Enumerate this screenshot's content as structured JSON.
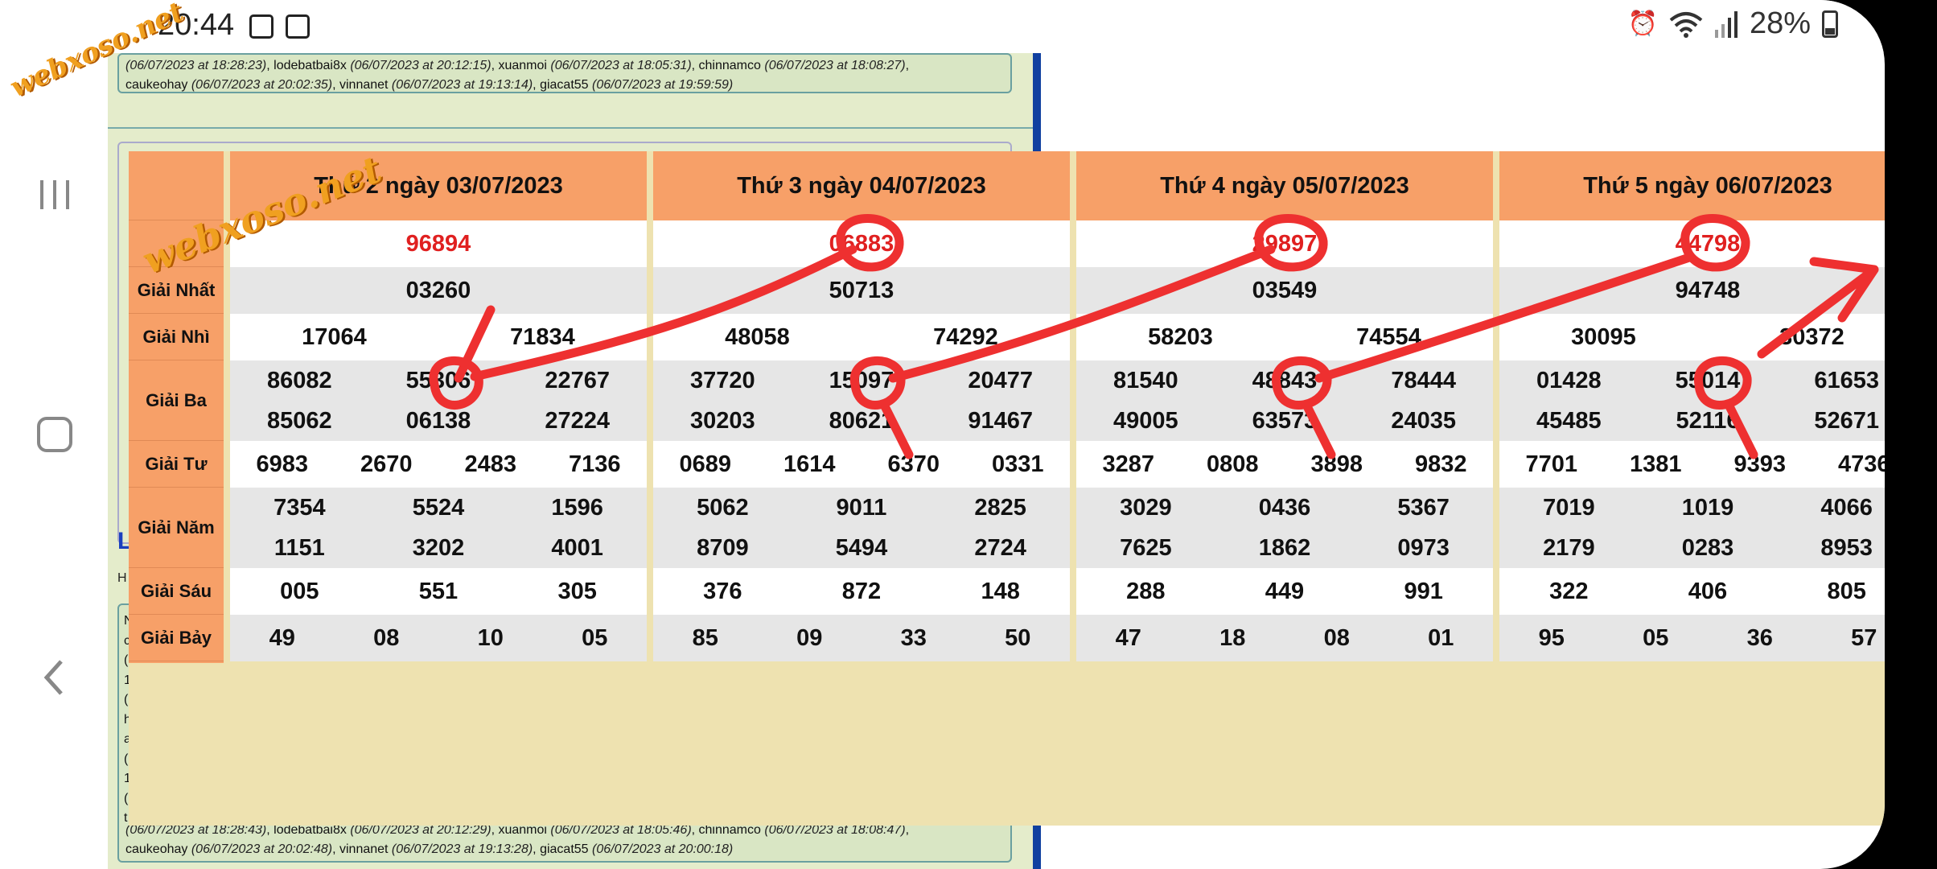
{
  "status_bar": {
    "time": "20:44",
    "battery": "28%",
    "icons": [
      "calendar-icon",
      "gallery-icon",
      "alarm-icon",
      "wifi-icon",
      "signal-icon",
      "battery-icon"
    ]
  },
  "watermark": "webxoso.net",
  "webpage": {
    "top_comments": {
      "line1_parts": [
        "(06/07/2023 at 18:28:23)",
        ", lodebatbai8x ",
        "(06/07/2023 at 20:12:15)",
        ", xuanmoi ",
        "(06/07/2023 at 18:05:31)",
        ", chinnamco ",
        "(06/07/2023 at 18:08:27)",
        ","
      ],
      "line2_parts": [
        "caukeohay ",
        "(06/07/2023 at 20:02:35)",
        ", vinnanet ",
        "(06/07/2023 at 19:13:14)",
        ", giacat55 ",
        "(06/07/2023 at 19:59:59)"
      ]
    },
    "side_link": "L",
    "side_fragment_h": "H",
    "side_letters": [
      "N",
      "c",
      "(",
      "1",
      "(",
      "h",
      "a",
      "(",
      "1",
      "(",
      "t"
    ],
    "bottom_comments": {
      "line1_parts": [
        "(06/07/2023 at 18:28:43)",
        ", lodebatbai8x ",
        "(06/07/2023 at 20:12:29)",
        ", xuanmoi ",
        "(06/07/2023 at 18:05:46)",
        ", chinnamco ",
        "(06/07/2023 at 18:08:47)",
        ","
      ],
      "line2_parts": [
        "caukeohay ",
        "(06/07/2023 at 20:02:48)",
        ", vinnanet ",
        "(06/07/2023 at 19:13:28)",
        ", giacat55 ",
        "(06/07/2023 at 20:00:18)"
      ]
    }
  },
  "results": {
    "row_labels": [
      "",
      "Giải Nhất",
      "Giải Nhì",
      "Giải Ba",
      "Giải Tư",
      "Giải Năm",
      "Giải Sáu",
      "Giải Bảy"
    ],
    "days": [
      {
        "header": "Thứ 2 ngày 03/07/2023",
        "special": "96894",
        "nhat": [
          "03260"
        ],
        "nhi": [
          "17064",
          "71834"
        ],
        "ba": [
          "86082",
          "55306",
          "22767",
          "85062",
          "06138",
          "27224"
        ],
        "tu": [
          "6983",
          "2670",
          "2483",
          "7136"
        ],
        "nam": [
          "7354",
          "5524",
          "1596",
          "1151",
          "3202",
          "4001"
        ],
        "sau": [
          "005",
          "551",
          "305"
        ],
        "bay": [
          "49",
          "08",
          "10",
          "05"
        ]
      },
      {
        "header": "Thứ 3 ngày 04/07/2023",
        "special": "06883",
        "nhat": [
          "50713"
        ],
        "nhi": [
          "48058",
          "74292"
        ],
        "ba": [
          "37720",
          "15097",
          "20477",
          "30203",
          "80621",
          "91467"
        ],
        "tu": [
          "0689",
          "1614",
          "6370",
          "0331"
        ],
        "nam": [
          "5062",
          "9011",
          "2825",
          "8709",
          "5494",
          "2724"
        ],
        "sau": [
          "376",
          "872",
          "148"
        ],
        "bay": [
          "85",
          "09",
          "33",
          "50"
        ]
      },
      {
        "header": "Thứ 4 ngày 05/07/2023",
        "special": "29897",
        "nhat": [
          "03549"
        ],
        "nhi": [
          "58203",
          "74554"
        ],
        "ba": [
          "81540",
          "48843",
          "78444",
          "49005",
          "63573",
          "24035"
        ],
        "tu": [
          "3287",
          "0808",
          "3898",
          "9832"
        ],
        "nam": [
          "3029",
          "0436",
          "5367",
          "7625",
          "1862",
          "0973"
        ],
        "sau": [
          "288",
          "449",
          "991"
        ],
        "bay": [
          "47",
          "18",
          "08",
          "01"
        ]
      },
      {
        "header": "Thứ 5 ngày 06/07/2023",
        "special": "44798",
        "nhat": [
          "94748"
        ],
        "nhi": [
          "30095",
          "30372"
        ],
        "ba": [
          "01428",
          "55014",
          "61653",
          "45485",
          "52116",
          "52671"
        ],
        "tu": [
          "7701",
          "1381",
          "9393",
          "4736"
        ],
        "nam": [
          "7019",
          "1019",
          "4066",
          "2179",
          "0283",
          "8953"
        ],
        "sau": [
          "322",
          "406",
          "805"
        ],
        "bay": [
          "95",
          "05",
          "36",
          "57"
        ]
      }
    ]
  },
  "colors": {
    "header_orange": "#f7a068",
    "special_red": "#e02020",
    "annotation_red": "#ee3030",
    "overlay_bg": "#eee2b0"
  }
}
